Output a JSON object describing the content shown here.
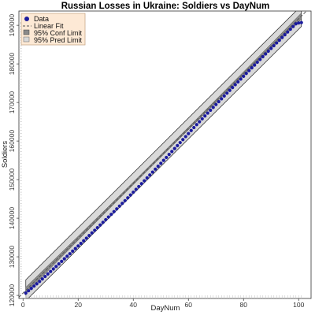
{
  "chart_data": {
    "type": "scatter",
    "title": "Russian Losses in Ukraine: Soldiers vs DayNum",
    "xlabel": "DayNum",
    "ylabel": "Soldiers",
    "xlim": [
      -1.5,
      104.5
    ],
    "ylim": [
      119200,
      193700
    ],
    "xticks": [
      0,
      20,
      40,
      60,
      80,
      100
    ],
    "yticks": [
      120000,
      130000,
      140000,
      150000,
      160000,
      170000,
      180000,
      190000
    ],
    "grid": false,
    "legend": {
      "placement": "top-left",
      "entries": [
        "Data",
        "Linear Fit",
        "95% Conf Limit",
        "95% Pred Limit"
      ]
    },
    "colors": {
      "data": "#1b1b9e",
      "fit": "#555555",
      "conf_fill": "#8a8a8a",
      "pred_fill": "#d9d9d9",
      "legend_bg": "#fde9d5",
      "legend_border": "#c8a98a"
    },
    "fit": {
      "intercept": 120600,
      "slope": 710.8
    },
    "conf_halfwidth_edge": 800,
    "conf_halfwidth_center": 300,
    "pred_halfwidth": 2700,
    "series": [
      {
        "name": "Data",
        "x": [
          1,
          2,
          3,
          4,
          5,
          6,
          7,
          8,
          9,
          10,
          11,
          12,
          13,
          14,
          15,
          16,
          17,
          18,
          19,
          20,
          21,
          22,
          23,
          24,
          25,
          26,
          27,
          28,
          29,
          30,
          31,
          32,
          33,
          34,
          35,
          36,
          37,
          38,
          39,
          40,
          41,
          42,
          43,
          44,
          45,
          46,
          47,
          48,
          49,
          50,
          51,
          52,
          53,
          54,
          55,
          56,
          57,
          58,
          59,
          60,
          61,
          62,
          63,
          64,
          65,
          66,
          67,
          68,
          69,
          70,
          71,
          72,
          73,
          74,
          75,
          76,
          77,
          78,
          79,
          80,
          81,
          82,
          83,
          84,
          85,
          86,
          87,
          88,
          89,
          90,
          91,
          92,
          93,
          94,
          95,
          96,
          97,
          98,
          99,
          100,
          101
        ],
        "y": [
          120600,
          121200,
          121800,
          122400,
          123000,
          123600,
          124250,
          124900,
          125550,
          126200,
          126850,
          127500,
          128160,
          128820,
          129480,
          130140,
          130800,
          131470,
          132140,
          132810,
          133480,
          134150,
          134830,
          135510,
          136190,
          136870,
          137550,
          138240,
          138930,
          139620,
          140310,
          141000,
          141710,
          142420,
          143130,
          143840,
          144550,
          145280,
          146010,
          146740,
          147470,
          148200,
          148950,
          149700,
          150450,
          151200,
          151950,
          152710,
          153470,
          154230,
          154990,
          155750,
          156520,
          157290,
          158060,
          158830,
          159600,
          160380,
          161160,
          161940,
          162720,
          163500,
          164250,
          165000,
          165750,
          166500,
          167250,
          167990,
          168730,
          169470,
          170210,
          170950,
          171680,
          172410,
          173140,
          173870,
          174600,
          175330,
          176060,
          176790,
          177520,
          178250,
          178980,
          179700,
          180420,
          181140,
          181860,
          182580,
          183290,
          184000,
          184710,
          185420,
          186130,
          186840,
          187550,
          188260,
          188970,
          189680,
          190390,
          190600,
          190700
        ]
      }
    ]
  }
}
